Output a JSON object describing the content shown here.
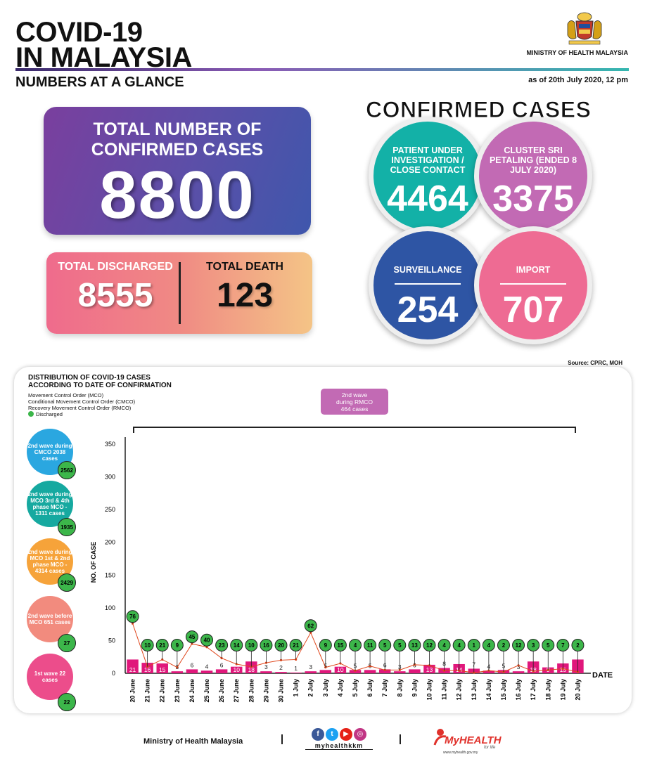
{
  "header": {
    "title_line1": "COVID-19",
    "title_line2": "IN MALAYSIA",
    "subtitle": "NUMBERS AT A GLANCE",
    "ministry": "MINISTRY OF HEALTH MALAYSIA",
    "as_of": "as of 20th July 2020, 12 pm"
  },
  "total": {
    "label": "TOTAL NUMBER OF CONFIRMED CASES",
    "value": "8800"
  },
  "discharged": {
    "label": "TOTAL DISCHARGED",
    "value": "8555"
  },
  "death": {
    "label": "TOTAL DEATH",
    "value": "123"
  },
  "confirmed": {
    "title": "CONFIRMED CASES",
    "pui": {
      "label": "PATIENT UNDER INVESTIGATION / CLOSE CONTACT",
      "value": "4464"
    },
    "cluster": {
      "label": "CLUSTER SRI PETALING (ENDED 8 JULY 2020)",
      "value": "3375"
    },
    "surveillance": {
      "label": "SURVEILLANCE",
      "value": "254"
    },
    "import": {
      "label": "IMPORT",
      "value": "707"
    }
  },
  "source": "Source: CPRC, MOH",
  "chart_panel": {
    "title_line1": "DISTRIBUTION OF COVID-19 CASES",
    "title_line2": "ACCORDING TO DATE OF CONFIRMATION",
    "legend": [
      "Movement Control Order (MCO)",
      "Conditional Movement Control Order (CMCO)",
      "Recovery Movement Control Order (RMCO)",
      "Discharged"
    ],
    "rmco_box": [
      "2nd wave",
      "during RMCO",
      "464 cases"
    ],
    "waves": [
      {
        "label": "2nd wave during CMCO 2038 cases",
        "discharged": "2562",
        "color": "#2aa7e0"
      },
      {
        "label": "2nd wave during MCO 3rd & 4th phase MCO - 1311 cases",
        "discharged": "1935",
        "color": "#16a9a0"
      },
      {
        "label": "2nd wave during MCO 1st & 2nd phase MCO - 4314 cases",
        "discharged": "2429",
        "color": "#f6a33a"
      },
      {
        "label": "2nd wave before MCO 651 cases",
        "discharged": "27",
        "color": "#f28b7e"
      },
      {
        "label": "1st wave 22 cases",
        "discharged": "22",
        "color": "#ec4d8b"
      }
    ]
  },
  "chart_data": {
    "type": "bar",
    "title": "",
    "xlabel": "DATE",
    "ylabel": "NO. OF CASE",
    "ylim": [
      0,
      350
    ],
    "yticks": [
      0,
      50,
      100,
      150,
      200,
      250,
      300,
      350
    ],
    "categories": [
      "20 June",
      "21 June",
      "22 June",
      "23 June",
      "24 June",
      "25 June",
      "26 June",
      "27 June",
      "28 June",
      "29 June",
      "30 June",
      "1 July",
      "2 July",
      "3 July",
      "4 July",
      "5 July",
      "6 July",
      "7 July",
      "8 July",
      "9 July",
      "10 July",
      "11 July",
      "12 July",
      "13 July",
      "14 July",
      "15 July",
      "16 July",
      "17 July",
      "18 July",
      "19 July",
      "20 July"
    ],
    "series": [
      {
        "name": "",
        "kind": "bar",
        "color": "#e0177b",
        "values": [
          21,
          16,
          15,
          3,
          6,
          4,
          6,
          10,
          18,
          3,
          2,
          1,
          3,
          5,
          10,
          5,
          5,
          6,
          3,
          6,
          13,
          8,
          14,
          7,
          4,
          5,
          3,
          18,
          9,
          15,
          21
        ]
      },
      {
        "name": "Discharged",
        "kind": "line",
        "color": "#e0471d",
        "values": [
          76,
          10,
          21,
          9,
          45,
          40,
          23,
          14,
          10,
          16,
          20,
          21,
          62,
          9,
          15,
          4,
          11,
          5,
          5,
          13,
          12,
          4,
          4,
          1,
          4,
          2,
          12,
          3,
          5,
          7,
          2
        ]
      }
    ]
  },
  "footer": {
    "ministry": "Ministry of Health Malaysia",
    "handle": "myhealthkkm",
    "brand": "MyHEALTH",
    "brand_sub": "for life",
    "url": "www.myhealth.gov.my"
  }
}
